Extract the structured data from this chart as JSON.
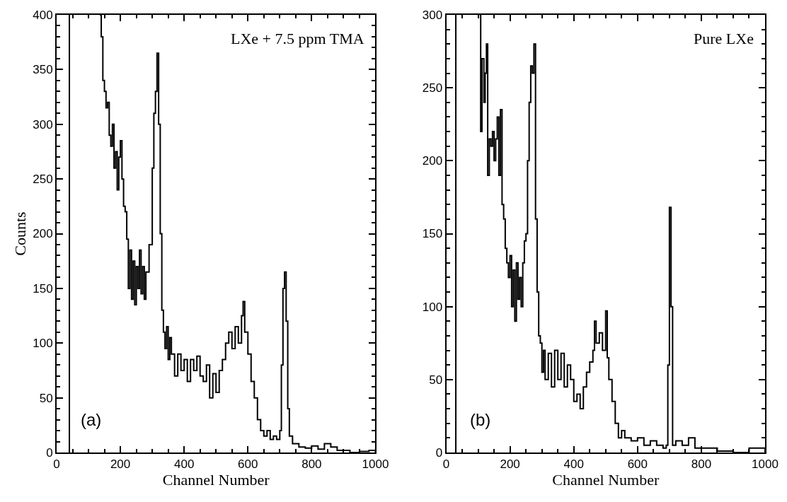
{
  "chart_data": [
    {
      "type": "step",
      "xlabel": "Channel Number",
      "ylabel": "Counts",
      "annotations": [
        "LXe + 7.5 ppm TMA",
        "(a)"
      ],
      "xlim": [
        0,
        1000
      ],
      "xticks": [
        0,
        200,
        400,
        600,
        800,
        1000
      ],
      "ylim": [
        0,
        400
      ],
      "yticks": [
        0,
        50,
        100,
        150,
        200,
        250,
        300,
        350,
        400
      ],
      "series": [
        {
          "color": "#000000",
          "x": [
            40,
            40,
            50,
            135,
            140,
            145,
            150,
            155,
            160,
            165,
            170,
            175,
            180,
            185,
            190,
            195,
            200,
            205,
            210,
            215,
            220,
            225,
            230,
            235,
            240,
            245,
            250,
            255,
            260,
            265,
            270,
            275,
            280,
            290,
            300,
            305,
            310,
            315,
            320,
            325,
            330,
            335,
            340,
            345,
            350,
            355,
            360,
            370,
            380,
            390,
            400,
            410,
            420,
            430,
            440,
            450,
            460,
            470,
            480,
            490,
            500,
            510,
            520,
            530,
            540,
            550,
            560,
            570,
            580,
            585,
            590,
            600,
            610,
            620,
            630,
            640,
            650,
            660,
            670,
            680,
            690,
            700,
            705,
            710,
            715,
            720,
            725,
            730,
            740,
            760,
            780,
            800,
            820,
            840,
            860,
            880,
            900,
            920,
            950,
            980,
            1000
          ],
          "values": [
            0,
            400,
            null,
            400,
            380,
            340,
            330,
            315,
            320,
            290,
            280,
            300,
            260,
            275,
            240,
            270,
            285,
            250,
            225,
            220,
            195,
            150,
            185,
            140,
            175,
            135,
            170,
            150,
            185,
            145,
            170,
            140,
            165,
            190,
            260,
            310,
            330,
            365,
            300,
            200,
            130,
            110,
            95,
            115,
            85,
            105,
            90,
            70,
            90,
            75,
            85,
            65,
            85,
            75,
            88,
            70,
            65,
            80,
            50,
            72,
            55,
            75,
            85,
            100,
            110,
            95,
            115,
            100,
            125,
            138,
            110,
            90,
            65,
            50,
            30,
            20,
            15,
            20,
            12,
            15,
            12,
            20,
            80,
            150,
            165,
            120,
            40,
            15,
            8,
            5,
            4,
            6,
            3,
            8,
            5,
            2,
            2,
            0,
            1,
            2,
            0
          ]
        }
      ]
    },
    {
      "type": "step",
      "xlabel": "Channel Number",
      "annotations": [
        "Pure LXe",
        "(b)"
      ],
      "xlim": [
        0,
        1000
      ],
      "xticks": [
        0,
        200,
        400,
        600,
        800,
        1000
      ],
      "ylim": [
        0,
        300
      ],
      "yticks": [
        0,
        50,
        100,
        150,
        200,
        250,
        300
      ],
      "series": [
        {
          "color": "#000000",
          "x": [
            30,
            30,
            40,
            105,
            108,
            112,
            118,
            122,
            126,
            130,
            135,
            140,
            145,
            150,
            155,
            160,
            165,
            170,
            175,
            180,
            185,
            190,
            195,
            200,
            205,
            210,
            215,
            220,
            225,
            230,
            235,
            240,
            245,
            250,
            255,
            260,
            265,
            270,
            275,
            280,
            285,
            290,
            295,
            300,
            305,
            310,
            320,
            330,
            340,
            350,
            360,
            370,
            380,
            390,
            400,
            410,
            420,
            430,
            440,
            450,
            460,
            465,
            470,
            480,
            490,
            500,
            505,
            510,
            520,
            530,
            540,
            550,
            560,
            580,
            600,
            620,
            640,
            660,
            680,
            690,
            695,
            700,
            705,
            710,
            720,
            740,
            760,
            780,
            800,
            850,
            900,
            950,
            1000
          ],
          "values": [
            0,
            300,
            null,
            300,
            220,
            270,
            240,
            260,
            280,
            190,
            215,
            210,
            220,
            200,
            215,
            230,
            190,
            235,
            170,
            160,
            140,
            130,
            120,
            135,
            100,
            125,
            90,
            130,
            105,
            120,
            100,
            130,
            145,
            150,
            200,
            240,
            265,
            260,
            280,
            160,
            110,
            80,
            75,
            55,
            70,
            50,
            68,
            45,
            70,
            50,
            68,
            45,
            60,
            50,
            35,
            40,
            30,
            45,
            55,
            62,
            70,
            90,
            75,
            82,
            70,
            97,
            65,
            50,
            35,
            20,
            10,
            15,
            10,
            8,
            10,
            5,
            8,
            5,
            3,
            5,
            60,
            168,
            100,
            5,
            8,
            5,
            10,
            3,
            3,
            1,
            0,
            3,
            0
          ]
        }
      ]
    }
  ]
}
